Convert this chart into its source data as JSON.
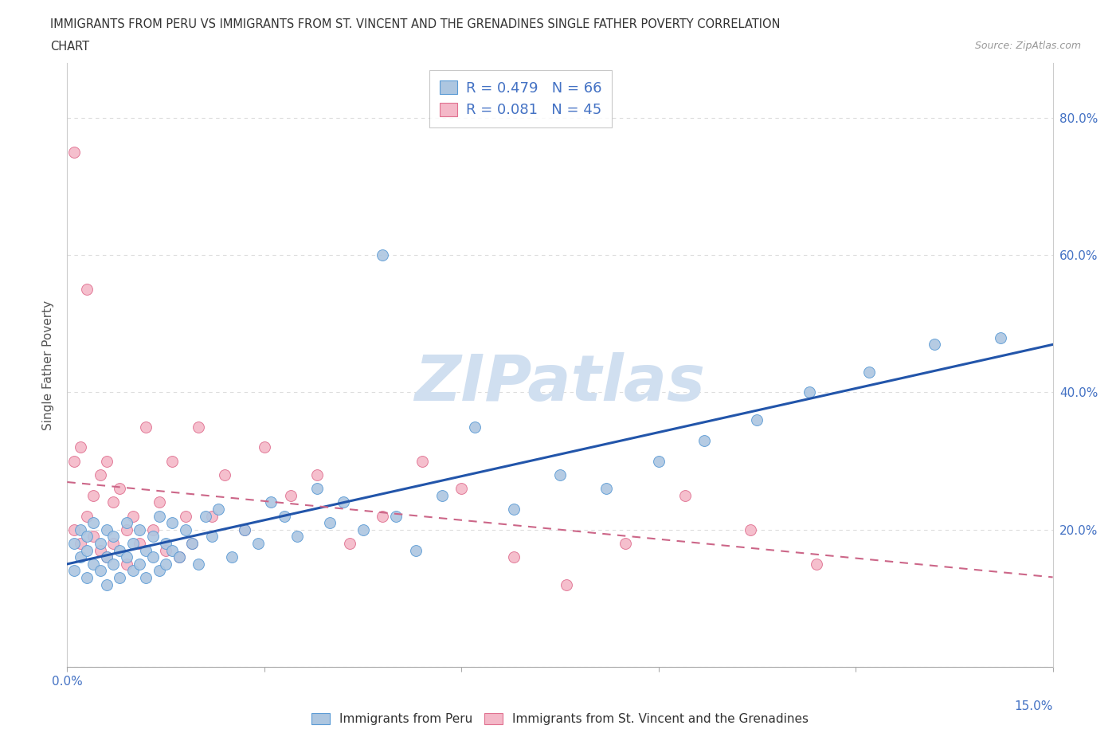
{
  "title_line1": "IMMIGRANTS FROM PERU VS IMMIGRANTS FROM ST. VINCENT AND THE GRENADINES SINGLE FATHER POVERTY CORRELATION",
  "title_line2": "CHART",
  "source_text": "Source: ZipAtlas.com",
  "ylabel": "Single Father Poverty",
  "x_min": 0.0,
  "x_max": 0.15,
  "y_min": 0.0,
  "y_max": 0.88,
  "x_ticks": [
    0.0,
    0.03,
    0.06,
    0.09,
    0.12,
    0.15
  ],
  "y_ticks": [
    0.0,
    0.2,
    0.4,
    0.6,
    0.8
  ],
  "peru_color": "#adc6e0",
  "peru_edge": "#5b9bd5",
  "svg_color": "#f4b8c8",
  "svg_edge": "#e07090",
  "peru_R": 0.479,
  "peru_N": 66,
  "svg_R": 0.081,
  "svg_N": 45,
  "legend_label_peru": "Immigrants from Peru",
  "legend_label_svg": "Immigrants from St. Vincent and the Grenadines",
  "watermark": "ZIPatlas",
  "watermark_color": "#d0dff0",
  "grid_color": "#dddddd",
  "title_color": "#333333",
  "axis_label_color": "#555555",
  "tick_label_color": "#4472c4",
  "R_N_color": "#4472c4",
  "peru_line_color": "#2255aa",
  "svg_line_color": "#cc6688",
  "peru_scatter_x": [
    0.001,
    0.001,
    0.002,
    0.002,
    0.003,
    0.003,
    0.003,
    0.004,
    0.004,
    0.005,
    0.005,
    0.006,
    0.006,
    0.006,
    0.007,
    0.007,
    0.008,
    0.008,
    0.009,
    0.009,
    0.01,
    0.01,
    0.011,
    0.011,
    0.012,
    0.012,
    0.013,
    0.013,
    0.014,
    0.014,
    0.015,
    0.015,
    0.016,
    0.016,
    0.017,
    0.018,
    0.019,
    0.02,
    0.021,
    0.022,
    0.023,
    0.025,
    0.027,
    0.029,
    0.031,
    0.033,
    0.035,
    0.038,
    0.04,
    0.042,
    0.045,
    0.048,
    0.05,
    0.053,
    0.057,
    0.062,
    0.068,
    0.075,
    0.082,
    0.09,
    0.097,
    0.105,
    0.113,
    0.122,
    0.132,
    0.142
  ],
  "peru_scatter_y": [
    0.14,
    0.18,
    0.16,
    0.2,
    0.13,
    0.17,
    0.19,
    0.15,
    0.21,
    0.14,
    0.18,
    0.12,
    0.16,
    0.2,
    0.15,
    0.19,
    0.13,
    0.17,
    0.16,
    0.21,
    0.14,
    0.18,
    0.15,
    0.2,
    0.13,
    0.17,
    0.16,
    0.19,
    0.14,
    0.22,
    0.15,
    0.18,
    0.17,
    0.21,
    0.16,
    0.2,
    0.18,
    0.15,
    0.22,
    0.19,
    0.23,
    0.16,
    0.2,
    0.18,
    0.24,
    0.22,
    0.19,
    0.26,
    0.21,
    0.24,
    0.2,
    0.6,
    0.22,
    0.17,
    0.25,
    0.35,
    0.23,
    0.28,
    0.26,
    0.3,
    0.33,
    0.36,
    0.4,
    0.43,
    0.47,
    0.48
  ],
  "svg_scatter_x": [
    0.001,
    0.001,
    0.001,
    0.002,
    0.002,
    0.003,
    0.003,
    0.004,
    0.004,
    0.005,
    0.005,
    0.006,
    0.006,
    0.007,
    0.007,
    0.008,
    0.009,
    0.009,
    0.01,
    0.011,
    0.012,
    0.013,
    0.014,
    0.015,
    0.016,
    0.017,
    0.018,
    0.019,
    0.02,
    0.022,
    0.024,
    0.027,
    0.03,
    0.034,
    0.038,
    0.043,
    0.048,
    0.054,
    0.06,
    0.068,
    0.076,
    0.085,
    0.094,
    0.104,
    0.114
  ],
  "svg_scatter_y": [
    0.75,
    0.3,
    0.2,
    0.32,
    0.18,
    0.55,
    0.22,
    0.25,
    0.19,
    0.28,
    0.17,
    0.3,
    0.16,
    0.24,
    0.18,
    0.26,
    0.2,
    0.15,
    0.22,
    0.18,
    0.35,
    0.2,
    0.24,
    0.17,
    0.3,
    0.16,
    0.22,
    0.18,
    0.35,
    0.22,
    0.28,
    0.2,
    0.32,
    0.25,
    0.28,
    0.18,
    0.22,
    0.3,
    0.26,
    0.16,
    0.12,
    0.18,
    0.25,
    0.2,
    0.15
  ]
}
